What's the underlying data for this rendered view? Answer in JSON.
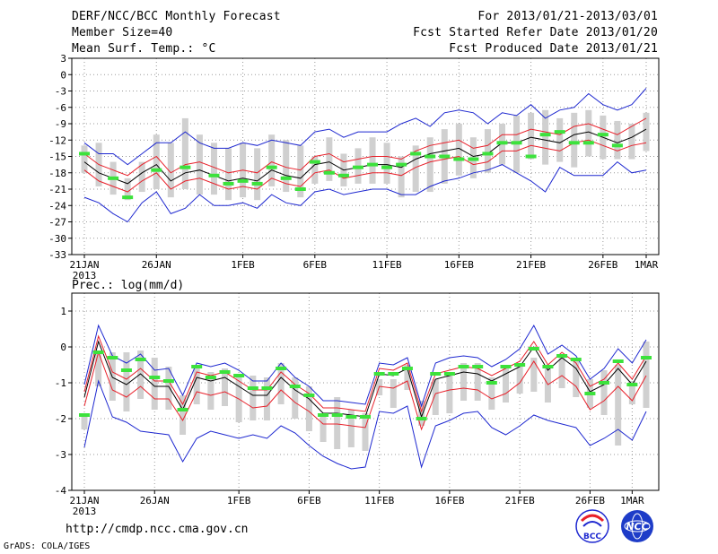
{
  "header": {
    "title": "DERF/NCC/BCC Monthly Forecast",
    "member_size": "Member Size=40",
    "variable1": "Mean Surf. Temp.: °C",
    "period": "For 2013/01/21-2013/03/01",
    "fcst_started": "Fcst Started Refer Date 2013/01/20",
    "fcst_produced": "Fcst Produced Date 2013/01/21"
  },
  "footer": {
    "url": "http://cmdp.ncc.cma.gov.cn",
    "grads": "GrADS: COLA/IGES",
    "logo_bcc": "BCC",
    "logo_ncc": "NCC"
  },
  "colors": {
    "frame": "#000000",
    "grid": "#999999",
    "spread_bar": "#d0d0d0",
    "mean_line": "#000000",
    "band_line": "#e8202a",
    "envelope_line": "#1e28d0",
    "observed_mark": "#3ce23c"
  },
  "chart_data": [
    {
      "type": "line",
      "title": "Mean Surf. Temp.: °C",
      "ylabel": "°C",
      "ylim": [
        -33,
        3
      ],
      "yticks": [
        3,
        0,
        -3,
        -6,
        -9,
        -12,
        -15,
        -18,
        -21,
        -24,
        -27,
        -30,
        -33
      ],
      "xlim": [
        1,
        40
      ],
      "xticks": [
        {
          "day": 1,
          "label": "21JAN",
          "sublabel": "2013"
        },
        {
          "day": 6,
          "label": "26JAN"
        },
        {
          "day": 12,
          "label": "1FEB"
        },
        {
          "day": 17,
          "label": "6FEB"
        },
        {
          "day": 22,
          "label": "11FEB"
        },
        {
          "day": 27,
          "label": "16FEB"
        },
        {
          "day": 32,
          "label": "21FEB"
        },
        {
          "day": 37,
          "label": "26FEB"
        },
        {
          "day": 40,
          "label": "1MAR"
        }
      ],
      "series": [
        {
          "name": "ensemble-mean",
          "color": "#000000",
          "values": [
            -16,
            -18,
            -19,
            -20,
            -18,
            -16.5,
            -19.5,
            -18,
            -17.5,
            -18.5,
            -19.5,
            -19,
            -19.5,
            -17.5,
            -18.5,
            -19,
            -16.5,
            -16,
            -17.5,
            -17,
            -16.5,
            -16.5,
            -17,
            -15.5,
            -14.5,
            -14,
            -13.5,
            -15,
            -14.5,
            -12.5,
            -12.5,
            -11.5,
            -12,
            -12.5,
            -11,
            -10.5,
            -11.5,
            -12.5,
            -11.5,
            -10
          ]
        },
        {
          "name": "upper-spread",
          "color": "#e8202a",
          "values": [
            -14.5,
            -16.5,
            -17.5,
            -18.5,
            -16.5,
            -15,
            -18,
            -16.5,
            -16,
            -17,
            -18,
            -17.5,
            -18,
            -16,
            -17,
            -17.5,
            -15,
            -14.5,
            -16,
            -15.5,
            -15,
            -15,
            -15.5,
            -14,
            -13,
            -12.5,
            -12,
            -13.5,
            -13,
            -11,
            -11,
            -10,
            -10.5,
            -11,
            -9.5,
            -9,
            -10,
            -11,
            -9.5,
            -8
          ]
        },
        {
          "name": "lower-spread",
          "color": "#e8202a",
          "values": [
            -17.5,
            -19.5,
            -20.5,
            -21.5,
            -19.5,
            -18,
            -21,
            -19.5,
            -19,
            -20,
            -21,
            -20.5,
            -21,
            -19,
            -20,
            -20.5,
            -18,
            -17.5,
            -19,
            -18.5,
            -18,
            -18,
            -18.5,
            -17,
            -16,
            -15.5,
            -15,
            -16.5,
            -16,
            -14,
            -14,
            -13,
            -13.5,
            -14,
            -12.5,
            -12,
            -13,
            -14,
            -13,
            -12.5
          ]
        },
        {
          "name": "maximum",
          "color": "#1e28d0",
          "values": [
            -12.5,
            -14.5,
            -14.5,
            -16.5,
            -14.5,
            -12.5,
            -12.5,
            -10.5,
            -12.5,
            -13.5,
            -13.5,
            -12.5,
            -13,
            -12,
            -12.5,
            -13,
            -10.5,
            -10,
            -11.5,
            -10.5,
            -10.5,
            -10.5,
            -9,
            -8,
            -9.5,
            -7,
            -6.5,
            -7,
            -9,
            -7,
            -7.5,
            -5.5,
            -8,
            -6.5,
            -6,
            -3.5,
            -5.5,
            -6.5,
            -5.5,
            -2.5
          ]
        },
        {
          "name": "minimum",
          "color": "#1e28d0",
          "values": [
            -22.5,
            -23.5,
            -25.5,
            -27,
            -23.5,
            -21.5,
            -25.5,
            -24.5,
            -22,
            -24,
            -24,
            -23.5,
            -24.5,
            -22,
            -23.5,
            -24,
            -21.5,
            -21,
            -22,
            -21.5,
            -21,
            -21,
            -22,
            -22,
            -20.5,
            -19.5,
            -19,
            -18,
            -17.5,
            -16.5,
            -18,
            -19.5,
            -21.5,
            -17,
            -18.5,
            -18.5,
            -18.5,
            -16,
            -18,
            -17.5
          ]
        }
      ],
      "spread_bars": {
        "top": [
          -13,
          -12.5,
          -16,
          -19,
          -16,
          -11,
          -12.5,
          -8,
          -11,
          -12.5,
          -13.5,
          -12.5,
          -13.5,
          -11,
          -12,
          -13,
          -15,
          -11.5,
          -14.5,
          -13.5,
          -11.5,
          -12.5,
          -15,
          -13,
          -11.5,
          -10,
          -9,
          -11.5,
          -10,
          -9,
          -7.5,
          -7,
          -6.5,
          -8,
          -7,
          -6.5,
          -7.5,
          -8.5,
          -9,
          -7
        ],
        "bottom": [
          -18,
          -20.5,
          -22,
          -23,
          -21.5,
          -21,
          -22.5,
          -21,
          -22,
          -22,
          -23,
          -22.5,
          -23,
          -20.5,
          -21.5,
          -22.5,
          -20,
          -19.5,
          -20.5,
          -20,
          -20,
          -20,
          -22.5,
          -21.5,
          -21.5,
          -20,
          -18.5,
          -19,
          -18,
          -16.5,
          -18,
          -15.5,
          -16.5,
          -16,
          -17,
          -15,
          -15.5,
          -15.5,
          -15.5,
          -14
        ]
      },
      "observed": [
        -14.5,
        null,
        -19,
        -22.5,
        null,
        -17.5,
        null,
        -17,
        null,
        -18.5,
        -20,
        -19.5,
        -20,
        -17,
        -19,
        -21,
        -16,
        -18,
        -18.5,
        -17,
        -16.5,
        -17,
        -16.5,
        -14.5,
        -15,
        -15,
        -15.5,
        -15.5,
        -14.5,
        -12.5,
        -12.5,
        -15,
        -11,
        -10.5,
        -12.5,
        -12.5,
        -11,
        -13,
        null,
        null
      ]
    },
    {
      "type": "line",
      "title": "Prec.: log(mm/d)",
      "ylabel": "log(mm/d)",
      "ylim": [
        -4,
        1.5
      ],
      "yticks": [
        1,
        0,
        -1,
        -2,
        -3,
        -4
      ],
      "xlim": [
        1,
        40
      ],
      "xticks": [
        {
          "day": 1,
          "label": "21JAN",
          "sublabel": "2013"
        },
        {
          "day": 6,
          "label": "26JAN"
        },
        {
          "day": 12,
          "label": "1FEB"
        },
        {
          "day": 17,
          "label": "6FEB"
        },
        {
          "day": 22,
          "label": "11FEB"
        },
        {
          "day": 27,
          "label": "16FEB"
        },
        {
          "day": 32,
          "label": "21FEB"
        },
        {
          "day": 37,
          "label": "26FEB"
        },
        {
          "day": 40,
          "label": "1MAR"
        }
      ],
      "series": [
        {
          "name": "ensemble-mean",
          "color": "#000000",
          "values": [
            -1.4,
            0.15,
            -0.85,
            -1.05,
            -0.75,
            -1.1,
            -1.1,
            -1.75,
            -0.85,
            -0.95,
            -0.85,
            -1.1,
            -1.35,
            -1.35,
            -0.85,
            -1.2,
            -1.45,
            -1.85,
            -1.85,
            -1.9,
            -1.95,
            -0.75,
            -0.8,
            -0.6,
            -1.95,
            -0.9,
            -0.8,
            -0.7,
            -0.75,
            -0.95,
            -0.75,
            -0.55,
            0.0,
            -0.65,
            -0.3,
            -0.6,
            -1.25,
            -1.05,
            -0.6,
            -1.05,
            -0.4
          ]
        },
        {
          "name": "upper-spread",
          "color": "#e8202a",
          "values": [
            -1.25,
            0.3,
            -0.7,
            -0.9,
            -0.6,
            -0.95,
            -0.95,
            -1.6,
            -0.7,
            -0.8,
            -0.7,
            -0.95,
            -1.2,
            -1.2,
            -0.7,
            -1.05,
            -1.3,
            -1.7,
            -1.7,
            -1.75,
            -1.8,
            -0.6,
            -0.65,
            -0.45,
            -1.8,
            -0.75,
            -0.65,
            -0.55,
            -0.6,
            -0.8,
            -0.6,
            -0.4,
            0.15,
            -0.5,
            -0.15,
            -0.45,
            -1.1,
            -0.9,
            -0.45,
            -0.9,
            -0.25
          ]
        },
        {
          "name": "lower-spread",
          "color": "#e8202a",
          "values": [
            -1.65,
            -0.15,
            -1.2,
            -1.4,
            -1.1,
            -1.45,
            -1.45,
            -2.05,
            -1.25,
            -1.35,
            -1.25,
            -1.45,
            -1.7,
            -1.65,
            -1.2,
            -1.55,
            -1.8,
            -2.15,
            -2.15,
            -2.2,
            -2.25,
            -1.1,
            -1.15,
            -0.95,
            -2.3,
            -1.3,
            -1.2,
            -1.15,
            -1.2,
            -1.45,
            -1.3,
            -1.0,
            -0.4,
            -1.05,
            -0.8,
            -1.1,
            -1.75,
            -1.5,
            -1.1,
            -1.5,
            -0.8
          ]
        },
        {
          "name": "maximum",
          "color": "#1e28d0",
          "values": [
            -1.05,
            0.6,
            -0.25,
            -0.45,
            -0.2,
            -0.65,
            -0.6,
            -1.35,
            -0.45,
            -0.55,
            -0.45,
            -0.65,
            -0.95,
            -0.95,
            -0.45,
            -0.85,
            -1.1,
            -1.5,
            -1.5,
            -1.55,
            -1.6,
            -0.45,
            -0.5,
            -0.3,
            -1.65,
            -0.45,
            -0.3,
            -0.25,
            -0.3,
            -0.55,
            -0.35,
            -0.05,
            0.6,
            -0.2,
            0.05,
            -0.25,
            -0.9,
            -0.6,
            -0.05,
            -0.45,
            0.2
          ]
        },
        {
          "name": "minimum",
          "color": "#1e28d0",
          "values": [
            -2.8,
            -0.95,
            -1.95,
            -2.1,
            -2.35,
            -2.4,
            -2.45,
            -3.2,
            -2.55,
            -2.35,
            -2.45,
            -2.55,
            -2.45,
            -2.55,
            -2.2,
            -2.4,
            -2.75,
            -3.05,
            -3.25,
            -3.4,
            -3.35,
            -1.8,
            -1.85,
            -1.65,
            -3.35,
            -2.2,
            -2.05,
            -1.85,
            -1.8,
            -2.25,
            -2.45,
            -2.2,
            -1.9,
            -2.05,
            -2.15,
            -2.25,
            -2.75,
            -2.55,
            -2.3,
            -2.6,
            -1.8
          ]
        }
      ],
      "spread_bars": {
        "top": [
          -1.95,
          -0.2,
          -0.15,
          -0.15,
          -0.1,
          -0.3,
          -0.55,
          -1.35,
          -0.55,
          -0.7,
          -0.6,
          -0.8,
          -0.8,
          -0.85,
          -0.45,
          -0.85,
          -1.1,
          -1.85,
          -1.4,
          -1.75,
          -1.85,
          -0.9,
          -0.9,
          -0.5,
          -1.5,
          -0.9,
          -0.7,
          -0.45,
          -0.45,
          -0.85,
          -0.5,
          -0.45,
          -0.3,
          -0.6,
          -0.25,
          -0.35,
          -0.9,
          -0.65,
          -0.5,
          -0.95,
          0.15
        ],
        "bottom": [
          -2.3,
          -1.1,
          -1.5,
          -1.8,
          -1.45,
          -1.75,
          -1.75,
          -2.45,
          -1.6,
          -1.75,
          -1.65,
          -2.1,
          -2.05,
          -2.05,
          -1.6,
          -2.0,
          -2.35,
          -2.65,
          -2.85,
          -2.8,
          -2.9,
          -1.35,
          -1.7,
          -1.2,
          -2.2,
          -1.9,
          -1.85,
          -1.5,
          -1.5,
          -1.75,
          -1.55,
          -1.3,
          -1.25,
          -1.55,
          -1.15,
          -1.4,
          -1.7,
          -1.9,
          -2.75,
          -1.6,
          -1.7
        ]
      },
      "observed": [
        -1.9,
        -0.15,
        -0.3,
        -0.65,
        -0.35,
        -0.85,
        -0.95,
        -1.75,
        -0.55,
        -0.85,
        -0.7,
        -0.8,
        -1.15,
        -1.15,
        -0.6,
        -1.1,
        -1.35,
        -1.9,
        -1.9,
        -1.95,
        -1.95,
        -0.75,
        -0.75,
        -0.6,
        -2.0,
        -0.75,
        -0.75,
        -0.55,
        -0.55,
        -1.0,
        -0.55,
        -0.5,
        -0.05,
        -0.55,
        -0.25,
        -0.35,
        -1.3,
        -1.0,
        -0.4,
        -1.05,
        -0.3
      ]
    }
  ]
}
